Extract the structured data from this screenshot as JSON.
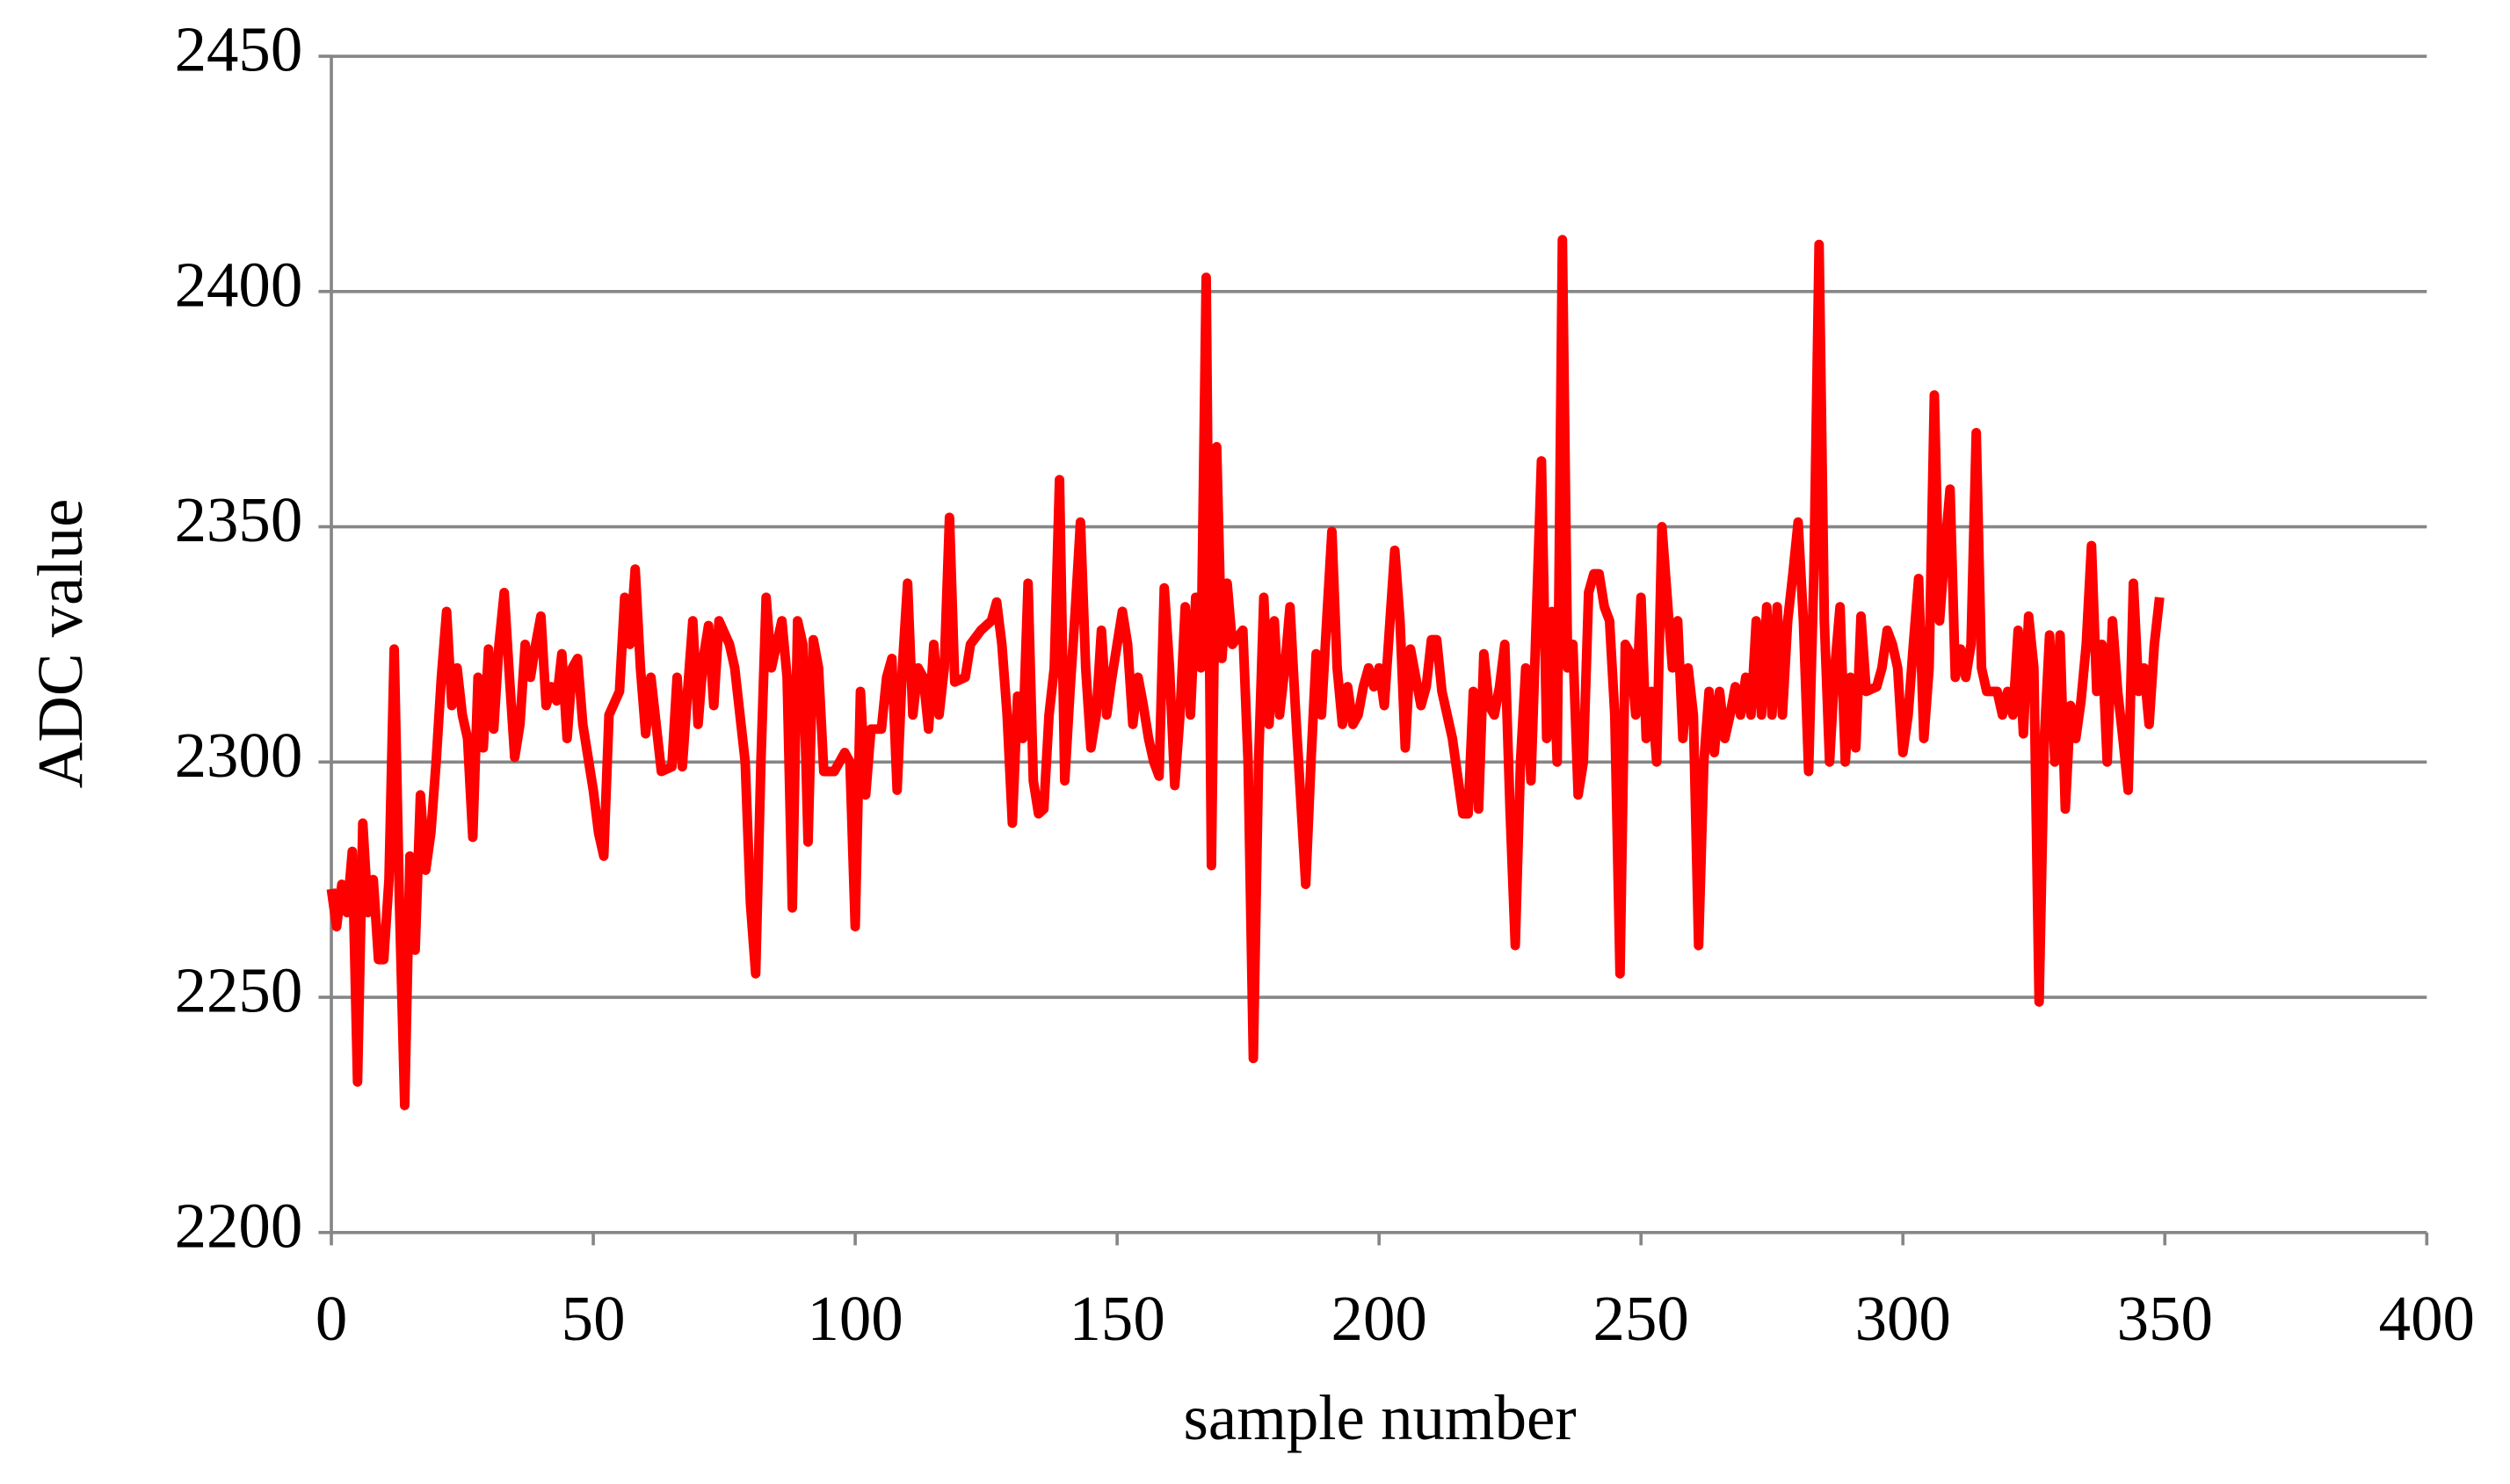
{
  "chart_data": {
    "type": "line",
    "x_label": "sample number",
    "y_label": "ADC value",
    "xlim": [
      0,
      400
    ],
    "xticks": [
      0,
      50,
      100,
      150,
      200,
      250,
      300,
      350,
      400
    ],
    "ylim": [
      2200,
      2450
    ],
    "yticks": [
      2200,
      2250,
      2300,
      2350,
      2400,
      2450
    ],
    "grid": true,
    "x": [
      0,
      1,
      2,
      3,
      4,
      5,
      6,
      7,
      8,
      9,
      10,
      11,
      12,
      13,
      14,
      15,
      16,
      17,
      18,
      19,
      20,
      21,
      22,
      23,
      24,
      25,
      26,
      27,
      28,
      29,
      30,
      31,
      32,
      33,
      34,
      35,
      36,
      37,
      38,
      39,
      40,
      41,
      42,
      43,
      44,
      45,
      46,
      47,
      48,
      50,
      51,
      52,
      53,
      55,
      56,
      57,
      58,
      59,
      60,
      61,
      63,
      65,
      66,
      67,
      68,
      69,
      70,
      71,
      72,
      73,
      74,
      76,
      77,
      79,
      80,
      81,
      82,
      83,
      84,
      85,
      86,
      87,
      88,
      89,
      90,
      91,
      92,
      93,
      94,
      96,
      98,
      99,
      100,
      101,
      102,
      103,
      105,
      106,
      107,
      108,
      109,
      110,
      111,
      112,
      113,
      114,
      115,
      116,
      117,
      118,
      119,
      121,
      122,
      124,
      126,
      127,
      128,
      129,
      130,
      131,
      132,
      133,
      134,
      135,
      136,
      137,
      138,
      139,
      140,
      141,
      142,
      143,
      144,
      145,
      146,
      147,
      148,
      149,
      150,
      151,
      152,
      153,
      154,
      155,
      156,
      157,
      158,
      159,
      160,
      161,
      162,
      163,
      164,
      165,
      166,
      167,
      168,
      169,
      170,
      171,
      172,
      174,
      175,
      176,
      177,
      178,
      179,
      180,
      181,
      182,
      183,
      184,
      186,
      187,
      188,
      189,
      190,
      191,
      192,
      193,
      194,
      195,
      196,
      197,
      198,
      199,
      200,
      201,
      203,
      204,
      205,
      206,
      207,
      208,
      209,
      210,
      211,
      212,
      213,
      214,
      216,
      217,
      218,
      219,
      220,
      221,
      222,
      223,
      224,
      225,
      226,
      227,
      228,
      229,
      230,
      231,
      232,
      233,
      234,
      235,
      236,
      237,
      238,
      239,
      240,
      241,
      242,
      243,
      244,
      245,
      246,
      247,
      248,
      249,
      250,
      251,
      252,
      253,
      254,
      255,
      256,
      257,
      258,
      259,
      260,
      261,
      262,
      263,
      264,
      265,
      266,
      267,
      268,
      269,
      270,
      271,
      272,
      273,
      274,
      275,
      276,
      277,
      278,
      279,
      280,
      281,
      282,
      283,
      284,
      285,
      286,
      287,
      288,
      289,
      290,
      291,
      292,
      293,
      295,
      296,
      297,
      298,
      299,
      300,
      301,
      302,
      303,
      304,
      305,
      306,
      307,
      308,
      309,
      310,
      311,
      312,
      313,
      314,
      315,
      316,
      318,
      319,
      320,
      321,
      322,
      323,
      324,
      325,
      326,
      327,
      328,
      329,
      330,
      331,
      332,
      333,
      334,
      335,
      336,
      337,
      338,
      339,
      340,
      341,
      342,
      343,
      344,
      345,
      346,
      347,
      348,
      349
    ],
    "series": [
      {
        "color": "#ff0000",
        "values": [
          2273,
          2265,
          2274,
          2268,
          2281,
          2232,
          2287,
          2268,
          2275,
          2258,
          2258,
          2275,
          2324,
          2270,
          2227,
          2280,
          2260,
          2293,
          2277,
          2285,
          2300,
          2318,
          2332,
          2312,
          2320,
          2310,
          2305,
          2284,
          2318,
          2303,
          2324,
          2307,
          2325,
          2336,
          2318,
          2301,
          2308,
          2325,
          2318,
          2325,
          2331,
          2312,
          2316,
          2313,
          2323,
          2305,
          2320,
          2322,
          2308,
          2294,
          2285,
          2280,
          2310,
          2315,
          2335,
          2325,
          2341,
          2320,
          2306,
          2318,
          2298,
          2299,
          2318,
          2299,
          2315,
          2330,
          2308,
          2322,
          2329,
          2312,
          2330,
          2325,
          2320,
          2300,
          2270,
          2255,
          2300,
          2335,
          2320,
          2325,
          2330,
          2318,
          2269,
          2330,
          2325,
          2283,
          2326,
          2320,
          2298,
          2298,
          2302,
          2300,
          2265,
          2315,
          2293,
          2307,
          2307,
          2318,
          2322,
          2294,
          2320,
          2338,
          2310,
          2320,
          2318,
          2307,
          2325,
          2310,
          2320,
          2352,
          2317,
          2318,
          2325,
          2328,
          2330,
          2334,
          2325,
          2310,
          2287,
          2314,
          2305,
          2338,
          2296,
          2289,
          2290,
          2310,
          2320,
          2360,
          2296,
          2315,
          2332,
          2351,
          2320,
          2303,
          2310,
          2328,
          2310,
          2318,
          2325,
          2332,
          2325,
          2308,
          2318,
          2312,
          2305,
          2300,
          2297,
          2337,
          2320,
          2295,
          2310,
          2333,
          2310,
          2335,
          2320,
          2403,
          2278,
          2367,
          2322,
          2338,
          2325,
          2328,
          2300,
          2237,
          2300,
          2335,
          2308,
          2330,
          2310,
          2320,
          2333,
          2312,
          2274,
          2300,
          2323,
          2310,
          2330,
          2349,
          2320,
          2308,
          2316,
          2308,
          2310,
          2316,
          2320,
          2316,
          2320,
          2312,
          2345,
          2330,
          2303,
          2324,
          2318,
          2312,
          2316,
          2326,
          2326,
          2315,
          2310,
          2305,
          2289,
          2289,
          2315,
          2290,
          2323,
          2312,
          2310,
          2316,
          2325,
          2290,
          2261,
          2300,
          2320,
          2296,
          2330,
          2364,
          2305,
          2332,
          2300,
          2411,
          2320,
          2325,
          2293,
          2300,
          2336,
          2340,
          2340,
          2333,
          2330,
          2310,
          2255,
          2325,
          2323,
          2310,
          2335,
          2305,
          2315,
          2300,
          2350,
          2335,
          2320,
          2330,
          2305,
          2320,
          2310,
          2261,
          2300,
          2315,
          2302,
          2315,
          2305,
          2310,
          2316,
          2310,
          2318,
          2310,
          2330,
          2310,
          2333,
          2310,
          2333,
          2310,
          2330,
          2340,
          2351,
          2330,
          2298,
          2340,
          2410,
          2330,
          2300,
          2320,
          2333,
          2300,
          2318,
          2303,
          2331,
          2315,
          2316,
          2320,
          2328,
          2325,
          2320,
          2302,
          2310,
          2325,
          2339,
          2305,
          2320,
          2378,
          2330,
          2345,
          2358,
          2318,
          2324,
          2318,
          2325,
          2370,
          2320,
          2315,
          2315,
          2310,
          2315,
          2310,
          2328,
          2306,
          2331,
          2320,
          2249,
          2305,
          2327,
          2300,
          2327,
          2290,
          2312,
          2305,
          2313,
          2325,
          2346,
          2315,
          2325,
          2300,
          2330,
          2315,
          2305,
          2294,
          2338,
          2315,
          2320,
          2308,
          2325,
          2335
        ]
      }
    ]
  }
}
